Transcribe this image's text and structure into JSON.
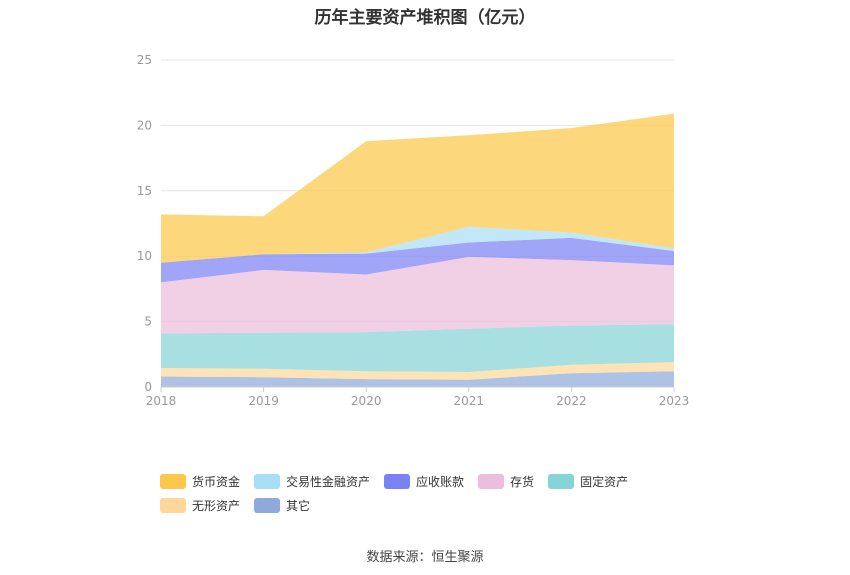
{
  "chart_data": {
    "type": "area",
    "stacked": true,
    "title": "历年主要资产堆积图（亿元）",
    "x": [
      "2018",
      "2019",
      "2020",
      "2021",
      "2022",
      "2023"
    ],
    "ylim": [
      0,
      25
    ],
    "yticks": [
      0,
      5,
      10,
      15,
      20,
      25
    ],
    "grid": true,
    "legend_position": "bottom",
    "series": [
      {
        "name": "其它",
        "color": "#8eaadb",
        "values": [
          0.8,
          0.75,
          0.6,
          0.55,
          1.05,
          1.2
        ]
      },
      {
        "name": "无形资产",
        "color": "#fdd89a",
        "values": [
          0.65,
          0.65,
          0.6,
          0.6,
          0.65,
          0.7
        ]
      },
      {
        "name": "固定资产",
        "color": "#87d4d6",
        "values": [
          2.65,
          2.75,
          3.0,
          3.3,
          3.0,
          2.9
        ]
      },
      {
        "name": "存货",
        "color": "#ebbedc",
        "values": [
          3.9,
          4.8,
          4.4,
          5.5,
          5.0,
          4.5
        ]
      },
      {
        "name": "应收账款",
        "color": "#7b82f5",
        "values": [
          1.5,
          1.2,
          1.6,
          1.1,
          1.7,
          1.1
        ]
      },
      {
        "name": "交易性金融资产",
        "color": "#a9def7",
        "values": [
          0.0,
          0.0,
          0.1,
          1.2,
          0.4,
          0.2
        ]
      },
      {
        "name": "货币资金",
        "color": "#fcc74a",
        "values": [
          3.7,
          2.9,
          8.5,
          7.0,
          8.0,
          10.3
        ]
      }
    ],
    "legend_order": [
      "货币资金",
      "交易性金融资产",
      "应收账款",
      "存货",
      "固定资产",
      "无形资产",
      "其它"
    ]
  },
  "source": "数据来源：恒生聚源"
}
